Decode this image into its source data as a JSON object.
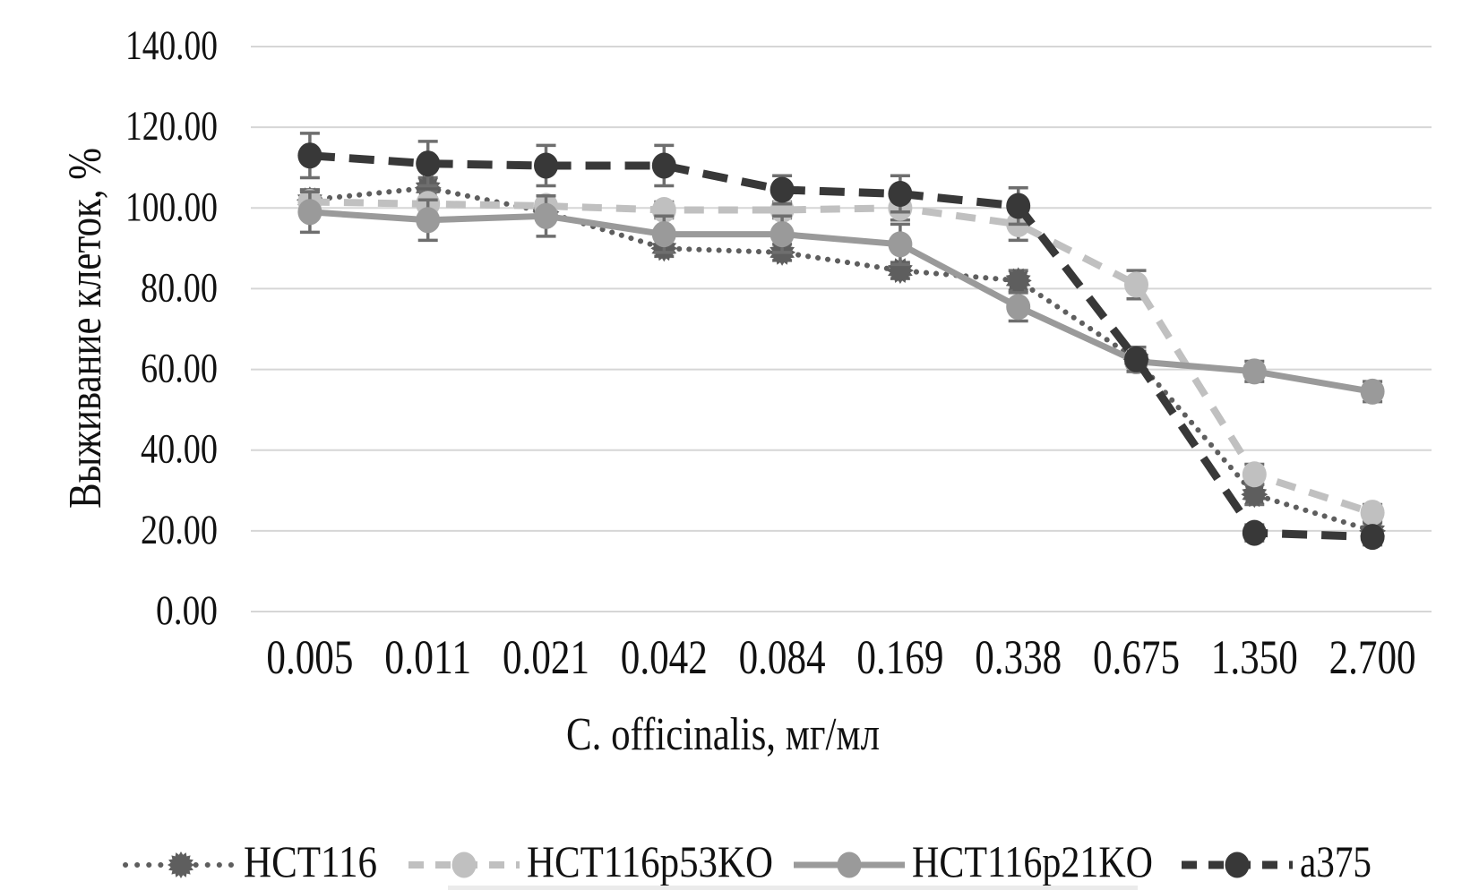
{
  "figure": {
    "background": "#ffffff",
    "gridline_color": "#d6d6d6",
    "errorbar_color": "#6e6e6e",
    "text_color": "#111111"
  },
  "chart_data": {
    "type": "line",
    "title": "",
    "xlabel": "C. officinalis, мг/мл",
    "ylabel": "Выживание клеток, %",
    "categories": [
      "0.005",
      "0.011",
      "0.021",
      "0.042",
      "0.084",
      "0.169",
      "0.338",
      "0.675",
      "1.350",
      "2.700"
    ],
    "ylim": [
      0,
      140
    ],
    "ytick_step": 20,
    "ytick_labels": [
      "0.00",
      "20.00",
      "40.00",
      "60.00",
      "80.00",
      "100.00",
      "120.00",
      "140.00"
    ],
    "grid": true,
    "legend_position": "bottom",
    "series": [
      {
        "name": "HCT116",
        "values": [
          102,
          105,
          99,
          90,
          89,
          84.5,
          82,
          62.5,
          29,
          20
        ],
        "errors": [
          2.5,
          2.5,
          2,
          2,
          2,
          2,
          2.5,
          3,
          2.5,
          2
        ],
        "color": "#5e5e5e",
        "line_style": "dotted",
        "marker": "burst"
      },
      {
        "name": "HCT116p53KO",
        "values": [
          101.5,
          101,
          100.5,
          99.5,
          99.5,
          100,
          96,
          81,
          34,
          24.5
        ],
        "errors": [
          3,
          3,
          2.5,
          2,
          2,
          3,
          4,
          3.5,
          2.5,
          2
        ],
        "color": "#c0c0c0",
        "line_style": "dashed",
        "marker": "circle"
      },
      {
        "name": "HCT116p21KO",
        "values": [
          99,
          97,
          98,
          93.5,
          93.5,
          91,
          75.5,
          62,
          59.5,
          54.5
        ],
        "errors": [
          5,
          5,
          5,
          4.5,
          4.5,
          5,
          3.5,
          2.5,
          2.5,
          2.5
        ],
        "color": "#9a9a9a",
        "line_style": "solid",
        "marker": "circle"
      },
      {
        "name": "a375",
        "values": [
          113,
          111,
          110.5,
          110.5,
          104.5,
          103.5,
          100.5,
          62.5,
          19.5,
          18.5
        ],
        "errors": [
          5.5,
          5.5,
          5,
          5,
          3.5,
          4.5,
          4.5,
          3,
          2,
          2
        ],
        "color": "#383838",
        "line_style": "dashed-bold",
        "marker": "circle"
      }
    ]
  }
}
